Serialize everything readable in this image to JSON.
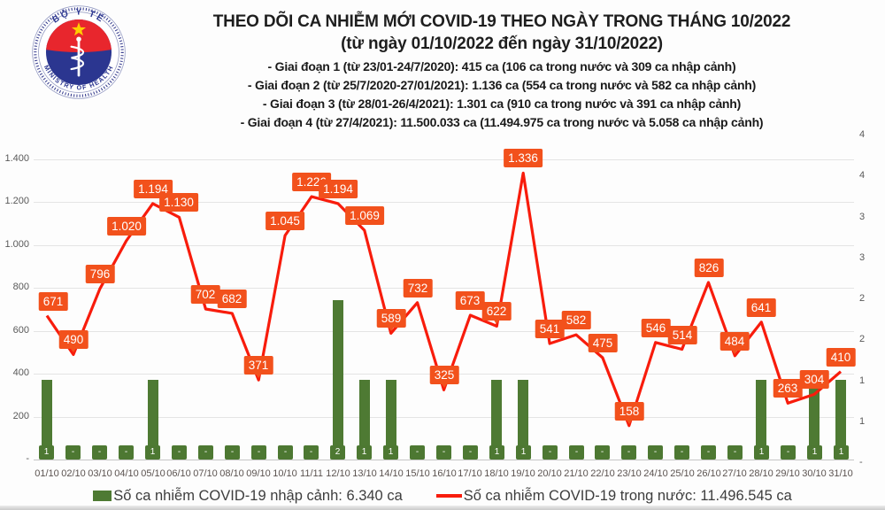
{
  "header": {
    "logo": {
      "top_text": "BỘ Y TẾ",
      "bottom_text": "MINISTRY OF HEALTH"
    },
    "title": "THEO DÕI CA NHIỄM MỚI COVID-19 THEO NGÀY TRONG THÁNG 10/2022",
    "subtitle": "(từ ngày 01/10/2022 đến ngày 31/10/2022)",
    "notes": [
      "- Giai đoạn 1 (từ 23/01-24/7/2020): 415 ca (106 ca trong nước và 309 ca nhập cảnh)",
      "- Giai đoạn 2 (từ 25/7/2020-27/01/2021): 1.136 ca (554 ca trong nước và 582 ca nhập cảnh)",
      "- Giai đoạn 3 (từ 28/01-26/4/2021): 1.301 ca (910 ca trong nước và 391 ca nhập cảnh)",
      "- Giai đoạn 4 (từ 27/4/2021): 11.500.033 ca (11.494.975 ca trong nước và 5.058 ca nhập cảnh)"
    ]
  },
  "chart_data": {
    "type": "line+bar",
    "categories": [
      "01/10",
      "02/10",
      "03/10",
      "04/10",
      "05/10",
      "06/10",
      "07/10",
      "08/10",
      "09/10",
      "10/10",
      "11/11",
      "12/10",
      "13/10",
      "14/10",
      "15/10",
      "16/10",
      "17/10",
      "18/10",
      "19/10",
      "20/10",
      "21/10",
      "22/10",
      "23/10",
      "24/10",
      "25/10",
      "26/10",
      "27/10",
      "28/10",
      "29/10",
      "30/10",
      "31/10"
    ],
    "series": [
      {
        "name": "Số ca nhiễm COVID-19 trong nước",
        "type": "line",
        "axis": "left",
        "color": "#f81c0c",
        "values": [
          671,
          490,
          796,
          1020,
          1194,
          1130,
          702,
          682,
          371,
          1045,
          1226,
          1194,
          1069,
          589,
          732,
          325,
          673,
          622,
          1336,
          541,
          582,
          475,
          158,
          546,
          514,
          826,
          484,
          641,
          263,
          304,
          410
        ],
        "labels": [
          "671",
          "490",
          "796",
          "1.020",
          "1.194",
          "1.130",
          "702",
          "682",
          "371",
          "1.045",
          "1.226",
          "1.194",
          "1.069",
          "589",
          "732",
          "325",
          "673",
          "622",
          "1.336",
          "541",
          "582",
          "475",
          "158",
          "546",
          "514",
          "826",
          "484",
          "641",
          "263",
          "304",
          "410"
        ]
      },
      {
        "name": "Số ca nhiễm COVID-19 nhập cảnh",
        "type": "bar",
        "axis": "right",
        "color": "#4e7a33",
        "values": [
          1,
          0,
          0,
          0,
          1,
          0,
          0,
          0,
          0,
          0,
          0,
          2,
          1,
          1,
          0,
          0,
          0,
          1,
          1,
          0,
          0,
          0,
          0,
          0,
          0,
          0,
          0,
          1,
          0,
          1,
          1
        ],
        "labels": [
          "1",
          "-",
          "-",
          "-",
          "1",
          "-",
          "-",
          "-",
          "-",
          "-",
          "-",
          "2",
          "1",
          "1",
          "-",
          "-",
          "-",
          "1",
          "1",
          "-",
          "-",
          "-",
          "-",
          "-",
          "-",
          "-",
          "-",
          "1",
          "-",
          "1",
          "1"
        ]
      }
    ],
    "left_axis": {
      "min": 0,
      "max": 1400,
      "tick_values": [
        0,
        200,
        400,
        600,
        800,
        1000,
        1200,
        1400
      ],
      "tick_labels": [
        "-",
        "200",
        "400",
        "600",
        "800",
        "1.000",
        "1.200",
        "1.400"
      ]
    },
    "right_axis": {
      "min": 0,
      "max": 4,
      "tick_values": [
        0,
        0.5,
        1,
        1.5,
        2,
        2.5,
        3,
        3.5,
        4
      ],
      "tick_labels": [
        "-",
        "1",
        "1",
        "2",
        "2",
        "3",
        "3",
        "4",
        "4"
      ]
    },
    "grid": "horizontal",
    "legend_position": "bottom",
    "label_bg_color": "#f2511c",
    "pointer_indices": [
      1,
      8,
      13,
      15,
      17,
      22,
      26
    ]
  },
  "legend": {
    "items": [
      {
        "swatch": "bar",
        "color": "#4e7a33",
        "label": "Số ca nhiễm COVID-19 nhập cảnh: 6.340 ca"
      },
      {
        "swatch": "line",
        "color": "#f81c0c",
        "label": "Số ca nhiễm COVID-19 trong nước: 11.496.545 ca"
      }
    ]
  }
}
